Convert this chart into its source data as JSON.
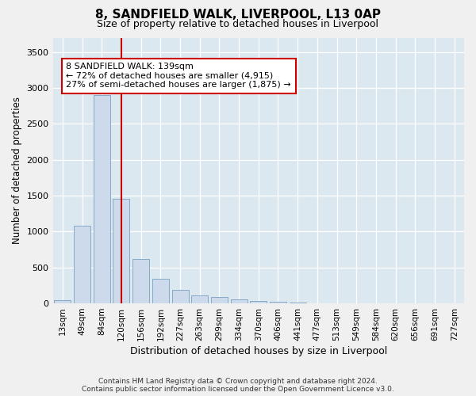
{
  "title": "8, SANDFIELD WALK, LIVERPOOL, L13 0AP",
  "subtitle": "Size of property relative to detached houses in Liverpool",
  "xlabel": "Distribution of detached houses by size in Liverpool",
  "ylabel": "Number of detached properties",
  "bar_values": [
    50,
    1080,
    2900,
    1460,
    620,
    340,
    185,
    110,
    85,
    55,
    35,
    20,
    10,
    5,
    5,
    3,
    2,
    1,
    1,
    1,
    1
  ],
  "x_tick_labels": [
    "13sqm",
    "49sqm",
    "84sqm",
    "120sqm",
    "156sqm",
    "192sqm",
    "227sqm",
    "263sqm",
    "299sqm",
    "334sqm",
    "370sqm",
    "406sqm",
    "441sqm",
    "477sqm",
    "513sqm",
    "549sqm",
    "584sqm",
    "620sqm",
    "656sqm",
    "691sqm",
    "727sqm"
  ],
  "bar_color": "#ccdaeb",
  "bar_edge_color": "#7aa0c0",
  "bar_edge_width": 0.6,
  "vline_position": 3.0,
  "vline_color": "#cc0000",
  "annotation_line1": "8 SANDFIELD WALK: 139sqm",
  "annotation_line2": "← 72% of detached houses are smaller (4,915)",
  "annotation_line3": "27% of semi-detached houses are larger (1,875) →",
  "ylim_max": 3700,
  "yticks": [
    0,
    500,
    1000,
    1500,
    2000,
    2500,
    3000,
    3500
  ],
  "bg_color": "#dce8f0",
  "grid_color": "#ffffff",
  "footer": "Contains HM Land Registry data © Crown copyright and database right 2024.\nContains public sector information licensed under the Open Government Licence v3.0."
}
